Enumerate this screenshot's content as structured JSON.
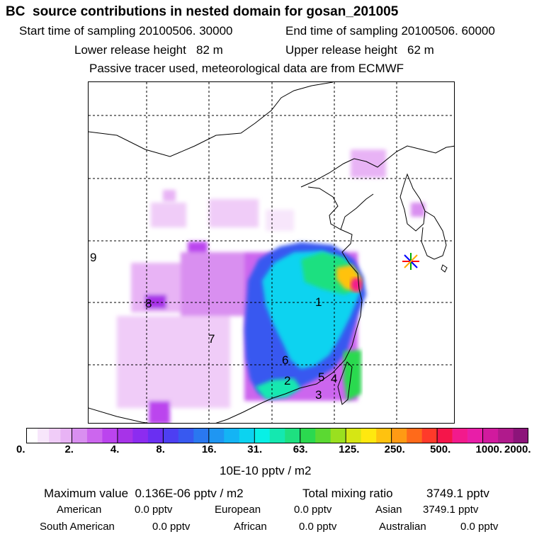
{
  "header": {
    "title": "BC  source contributions in nested domain for gosan_201005",
    "start_label": "Start time of sampling 20100506. 30000",
    "end_label": "End time of sampling 20100506. 60000",
    "lower_label": "Lower release height   82 m",
    "upper_label": "Upper release height   62 m",
    "tracer_label": "Passive tracer used, meteorological data are from ECMWF"
  },
  "chart_data": {
    "type": "heatmap",
    "title": "BC  source contributions in nested domain for gosan_201005",
    "colorbar": {
      "tick_labels": [
        "0.",
        "2.",
        "4.",
        "8.",
        "16.",
        "31.",
        "63.",
        "125.",
        "250.",
        "500.",
        "1000.",
        "2000."
      ],
      "unit_label": "10E-10 pptv / m2",
      "colors": [
        "#ffffff",
        "#f7e6fb",
        "#f0ccf8",
        "#e8b3f5",
        "#d98ff0",
        "#cc66ee",
        "#bb44ee",
        "#a733e8",
        "#8c2cf0",
        "#6a2ff2",
        "#4d3ff2",
        "#3859f0",
        "#2a78f0",
        "#1f96f2",
        "#14b4f4",
        "#0cd3f0",
        "#08f0e6",
        "#14e8b0",
        "#1ee080",
        "#2bd94f",
        "#5bd932",
        "#9ae01f",
        "#d6e614",
        "#ffe80f",
        "#ffc20f",
        "#ff9a14",
        "#ff6a1a",
        "#ff3a2a",
        "#f5154a",
        "#f21a8c",
        "#e81ea8",
        "#d11a9e",
        "#b01a8c",
        "#8c147a",
        "#6a0f66",
        "#4a0a50"
      ],
      "colors_per_interval": [
        4,
        3,
        3,
        3,
        3,
        3,
        3,
        3,
        3,
        3,
        3
      ]
    },
    "region_labels": [
      "1",
      "2",
      "3",
      "4",
      "5",
      "6",
      "7",
      "8",
      "9"
    ],
    "receptor_marker": "star",
    "legend_placement": "bottom",
    "grid": true
  },
  "footer": {
    "max_label": "Maximum value  0.136E-06 pptv / m2",
    "total_label": "Total mixing ratio",
    "total_value": "3749.1 pptv",
    "american_label": "American",
    "american_value": "0.0 pptv",
    "european_label": "European",
    "european_value": "0.0 pptv",
    "asian_label": "Asian",
    "asian_value": "3749.1 pptv",
    "south_american_label": "South American",
    "south_american_value": "0.0 pptv",
    "african_label": "African",
    "african_value": "0.0 pptv",
    "australian_label": "Australian",
    "australian_value": "0.0 pptv"
  }
}
